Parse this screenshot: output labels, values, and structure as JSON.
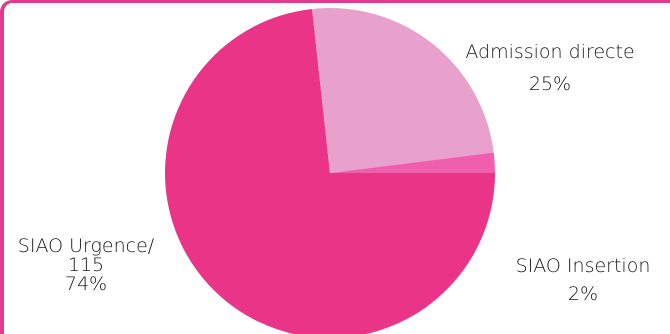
{
  "chart_data": {
    "type": "pie",
    "title": "",
    "slices": [
      {
        "label": "SIAO Urgence/115",
        "label_lines": [
          "SIAO Urgence/",
          "115"
        ],
        "value": 74,
        "value_label": "74%",
        "color": "#ea3488"
      },
      {
        "label": "Admission directe",
        "label_lines": [
          "Admission directe"
        ],
        "value": 25,
        "value_label": "25%",
        "color": "#e8a1cc"
      },
      {
        "label": "SIAO Insertion",
        "label_lines": [
          "SIAO Insertion"
        ],
        "value": 2,
        "value_label": "2%",
        "color": "#f05fad"
      }
    ],
    "start_angle_deg": -90,
    "direction": "counterclockwise",
    "legend": "none",
    "frame_color": "#e23a8f"
  }
}
